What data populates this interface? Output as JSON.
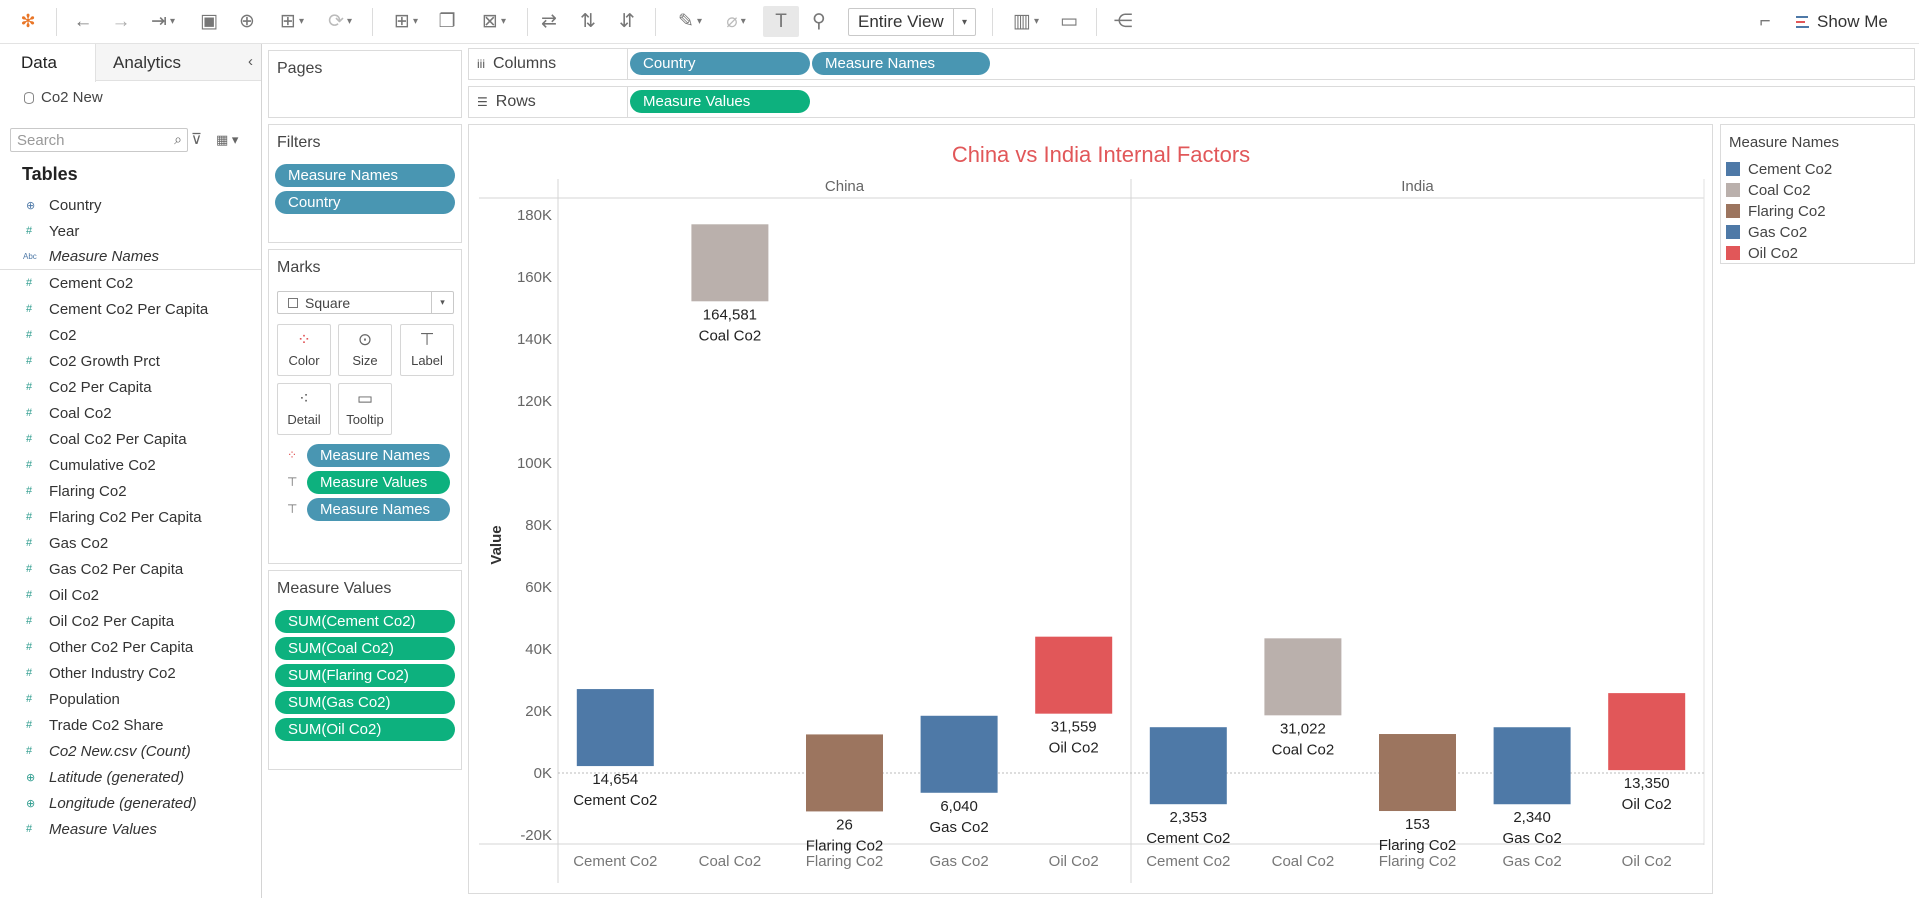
{
  "toolbar": {
    "view_mode": "Entire View",
    "show_me": "Show Me"
  },
  "data_pane": {
    "tab_data": "Data",
    "tab_analytics": "Analytics",
    "datasource": "Co2 New",
    "search_placeholder": "Search",
    "tables_heading": "Tables",
    "fields": [
      {
        "name": "Country",
        "icon": "globe-icon",
        "italic": false
      },
      {
        "name": "Year",
        "icon": "hash-icon",
        "italic": false
      },
      {
        "name": "Measure Names",
        "icon": "abc-icon",
        "italic": true
      },
      {
        "name": "Cement Co2",
        "icon": "hash-icon",
        "italic": false
      },
      {
        "name": "Cement Co2 Per Capita",
        "icon": "hash-icon",
        "italic": false
      },
      {
        "name": "Co2",
        "icon": "hash-icon",
        "italic": false
      },
      {
        "name": "Co2 Growth Prct",
        "icon": "hash-icon",
        "italic": false
      },
      {
        "name": "Co2 Per Capita",
        "icon": "hash-icon",
        "italic": false
      },
      {
        "name": "Coal Co2",
        "icon": "hash-icon",
        "italic": false
      },
      {
        "name": "Coal Co2 Per Capita",
        "icon": "hash-icon",
        "italic": false
      },
      {
        "name": "Cumulative Co2",
        "icon": "hash-icon",
        "italic": false
      },
      {
        "name": "Flaring Co2",
        "icon": "hash-icon",
        "italic": false
      },
      {
        "name": "Flaring Co2 Per Capita",
        "icon": "hash-icon",
        "italic": false
      },
      {
        "name": "Gas Co2",
        "icon": "hash-icon",
        "italic": false
      },
      {
        "name": "Gas Co2 Per Capita",
        "icon": "hash-icon",
        "italic": false
      },
      {
        "name": "Oil Co2",
        "icon": "hash-icon",
        "italic": false
      },
      {
        "name": "Oil Co2 Per Capita",
        "icon": "hash-icon",
        "italic": false
      },
      {
        "name": "Other Co2 Per Capita",
        "icon": "hash-icon",
        "italic": false
      },
      {
        "name": "Other Industry Co2",
        "icon": "hash-icon",
        "italic": false
      },
      {
        "name": "Population",
        "icon": "hash-icon",
        "italic": false
      },
      {
        "name": "Trade Co2 Share",
        "icon": "hash-icon",
        "italic": false
      },
      {
        "name": "Co2 New.csv (Count)",
        "icon": "hash-icon",
        "italic": true
      },
      {
        "name": "Latitude (generated)",
        "icon": "globe-icon",
        "italic": true
      },
      {
        "name": "Longitude (generated)",
        "icon": "globe-icon",
        "italic": true
      },
      {
        "name": "Measure Values",
        "icon": "hash-icon",
        "italic": true
      }
    ]
  },
  "pages": {
    "title": "Pages"
  },
  "filters": {
    "title": "Filters",
    "pills": [
      "Measure Names",
      "Country"
    ]
  },
  "marks": {
    "title": "Marks",
    "mark_type": "Square",
    "buttons": [
      "Color",
      "Size",
      "Label",
      "Detail",
      "Tooltip"
    ],
    "pills": [
      {
        "label": "Measure Names",
        "kind": "dim",
        "icon": "color-dots-icon"
      },
      {
        "label": "Measure Values",
        "kind": "mea",
        "icon": "label-t-icon"
      },
      {
        "label": "Measure Names",
        "kind": "dim",
        "icon": "label-t-icon"
      }
    ]
  },
  "measure_values": {
    "title": "Measure Values",
    "pills": [
      "SUM(Cement Co2)",
      "SUM(Coal Co2)",
      "SUM(Flaring Co2)",
      "SUM(Gas Co2)",
      "SUM(Oil Co2)"
    ]
  },
  "columns": {
    "label": "Columns",
    "pills": [
      "Country",
      "Measure Names"
    ]
  },
  "rows": {
    "label": "Rows",
    "pills": [
      "Measure Values"
    ]
  },
  "legend": {
    "title": "Measure Names",
    "items": [
      {
        "label": "Cement Co2",
        "color": "#4e79a7"
      },
      {
        "label": "Coal Co2",
        "color": "#bab0ac"
      },
      {
        "label": "Flaring Co2",
        "color": "#9c755f"
      },
      {
        "label": "Gas Co2",
        "color": "#4e79a7"
      },
      {
        "label": "Oil Co2",
        "color": "#e15759"
      }
    ]
  },
  "chart_data": {
    "type": "bar",
    "title": "China vs India Internal Factors",
    "ylabel": "Value",
    "ylim": [
      -20000,
      180000
    ],
    "yticks": [
      "-20K",
      "0K",
      "20K",
      "40K",
      "60K",
      "80K",
      "100K",
      "120K",
      "140K",
      "160K",
      "180K"
    ],
    "panes": [
      "China",
      "India"
    ],
    "categories": [
      "Cement Co2",
      "Coal Co2",
      "Flaring Co2",
      "Gas Co2",
      "Oil Co2"
    ],
    "series": [
      {
        "name": "China",
        "values": [
          14654,
          164581,
          26,
          6040,
          31559
        ]
      },
      {
        "name": "India",
        "values": [
          2353,
          31022,
          153,
          2340,
          13350
        ]
      }
    ],
    "colors": [
      "#4e79a7",
      "#bab0ac",
      "#9c755f",
      "#4e79a7",
      "#e15759"
    ],
    "title_color": "#e15759"
  }
}
